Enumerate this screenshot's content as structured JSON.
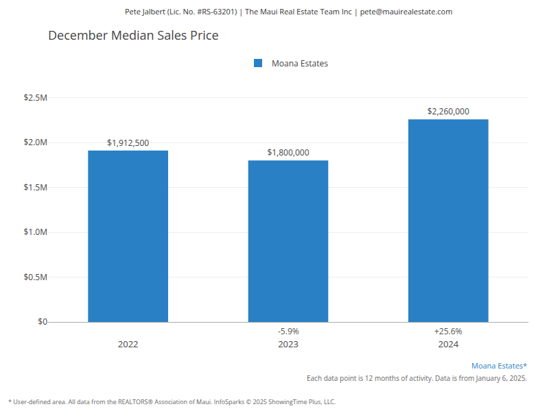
{
  "chart_data": {
    "type": "bar",
    "title": "December Median Sales Price",
    "categories": [
      "2022",
      "2023",
      "2024"
    ],
    "series": [
      {
        "name": "Moana Estates",
        "color": "#2980C4",
        "values": [
          1912500,
          1800000,
          2260000
        ],
        "value_labels": [
          "$1,912,500",
          "$1,800,000",
          "$2,260,000"
        ]
      }
    ],
    "data_labels": true,
    "ylim": [
      0,
      2750000
    ],
    "yticks": [
      {
        "value": 0,
        "label": "$0"
      },
      {
        "value": 500000,
        "label": "$0.5M"
      },
      {
        "value": 1000000,
        "label": "$1.0M"
      },
      {
        "value": 1500000,
        "label": "$1.5M"
      },
      {
        "value": 2000000,
        "label": "$2.0M"
      },
      {
        "value": 2500000,
        "label": "$2.5M"
      }
    ],
    "grid": true,
    "legend": "top",
    "annotations": [
      {
        "text": "-5.9%",
        "category": "2023"
      },
      {
        "text": "+25.6%",
        "category": "2024"
      }
    ],
    "header": "Pete Jalbert (Lic. No. #RS-63201) | The Maui Real Estate Team Inc | pete@mauirealestate.com",
    "footer": [
      "Moana Estates*",
      "Each data point is 12 months of activity. Data is from January 6, 2025.",
      "* User-defined area. All data from the REALTORS® Association of Maui. InfoSparks © 2025 ShowingTime Plus, LLC."
    ]
  }
}
